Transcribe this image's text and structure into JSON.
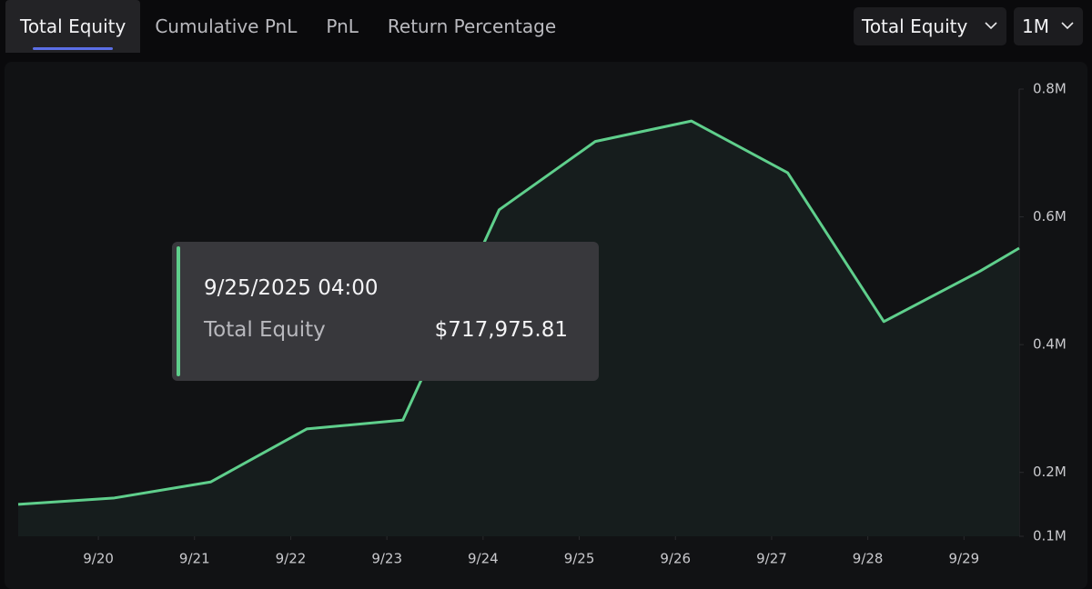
{
  "tabs": [
    "Total Equity",
    "Cumulative PnL",
    "PnL",
    "Return Percentage"
  ],
  "dropdowns": [
    "Total Equity",
    "1M"
  ],
  "tooltip": {
    "date": "9/25/2025 04:00",
    "value": "$717,975.81"
  },
  "chart_data": {
    "type": "area",
    "x": [
      19.1667,
      20.1667,
      21.1667,
      22.1667,
      23.1667,
      24.1667,
      25.1667,
      26.1667,
      27.1667,
      28.1667,
      29.1667,
      29.574
    ],
    "series": [
      {
        "name": "Total Equity",
        "color": "#5fcf8c",
        "values": [
          150000,
          160000,
          185000,
          268000,
          282000,
          611000,
          717975.81,
          750000,
          669000,
          436000,
          515000,
          551000
        ]
      }
    ],
    "xlim": [
      19.1667,
      29.574
    ],
    "xticks": [
      {
        "value": 20,
        "label": "9/20"
      },
      {
        "value": 21,
        "label": "9/21"
      },
      {
        "value": 22,
        "label": "9/22"
      },
      {
        "value": 23,
        "label": "9/23"
      },
      {
        "value": 24,
        "label": "9/24"
      },
      {
        "value": 25,
        "label": "9/25"
      },
      {
        "value": 26,
        "label": "9/26"
      },
      {
        "value": 27,
        "label": "9/27"
      },
      {
        "value": 28,
        "label": "9/28"
      },
      {
        "value": 29,
        "label": "9/29"
      }
    ],
    "ylim": [
      100000,
      800000
    ],
    "yticks": [
      {
        "value": 100000,
        "label": "0.1M"
      },
      {
        "value": 200000,
        "label": "0.2M"
      },
      {
        "value": 400000,
        "label": "0.4M"
      },
      {
        "value": 600000,
        "label": "0.6M"
      },
      {
        "value": 800000,
        "label": "0.8M"
      }
    ]
  }
}
